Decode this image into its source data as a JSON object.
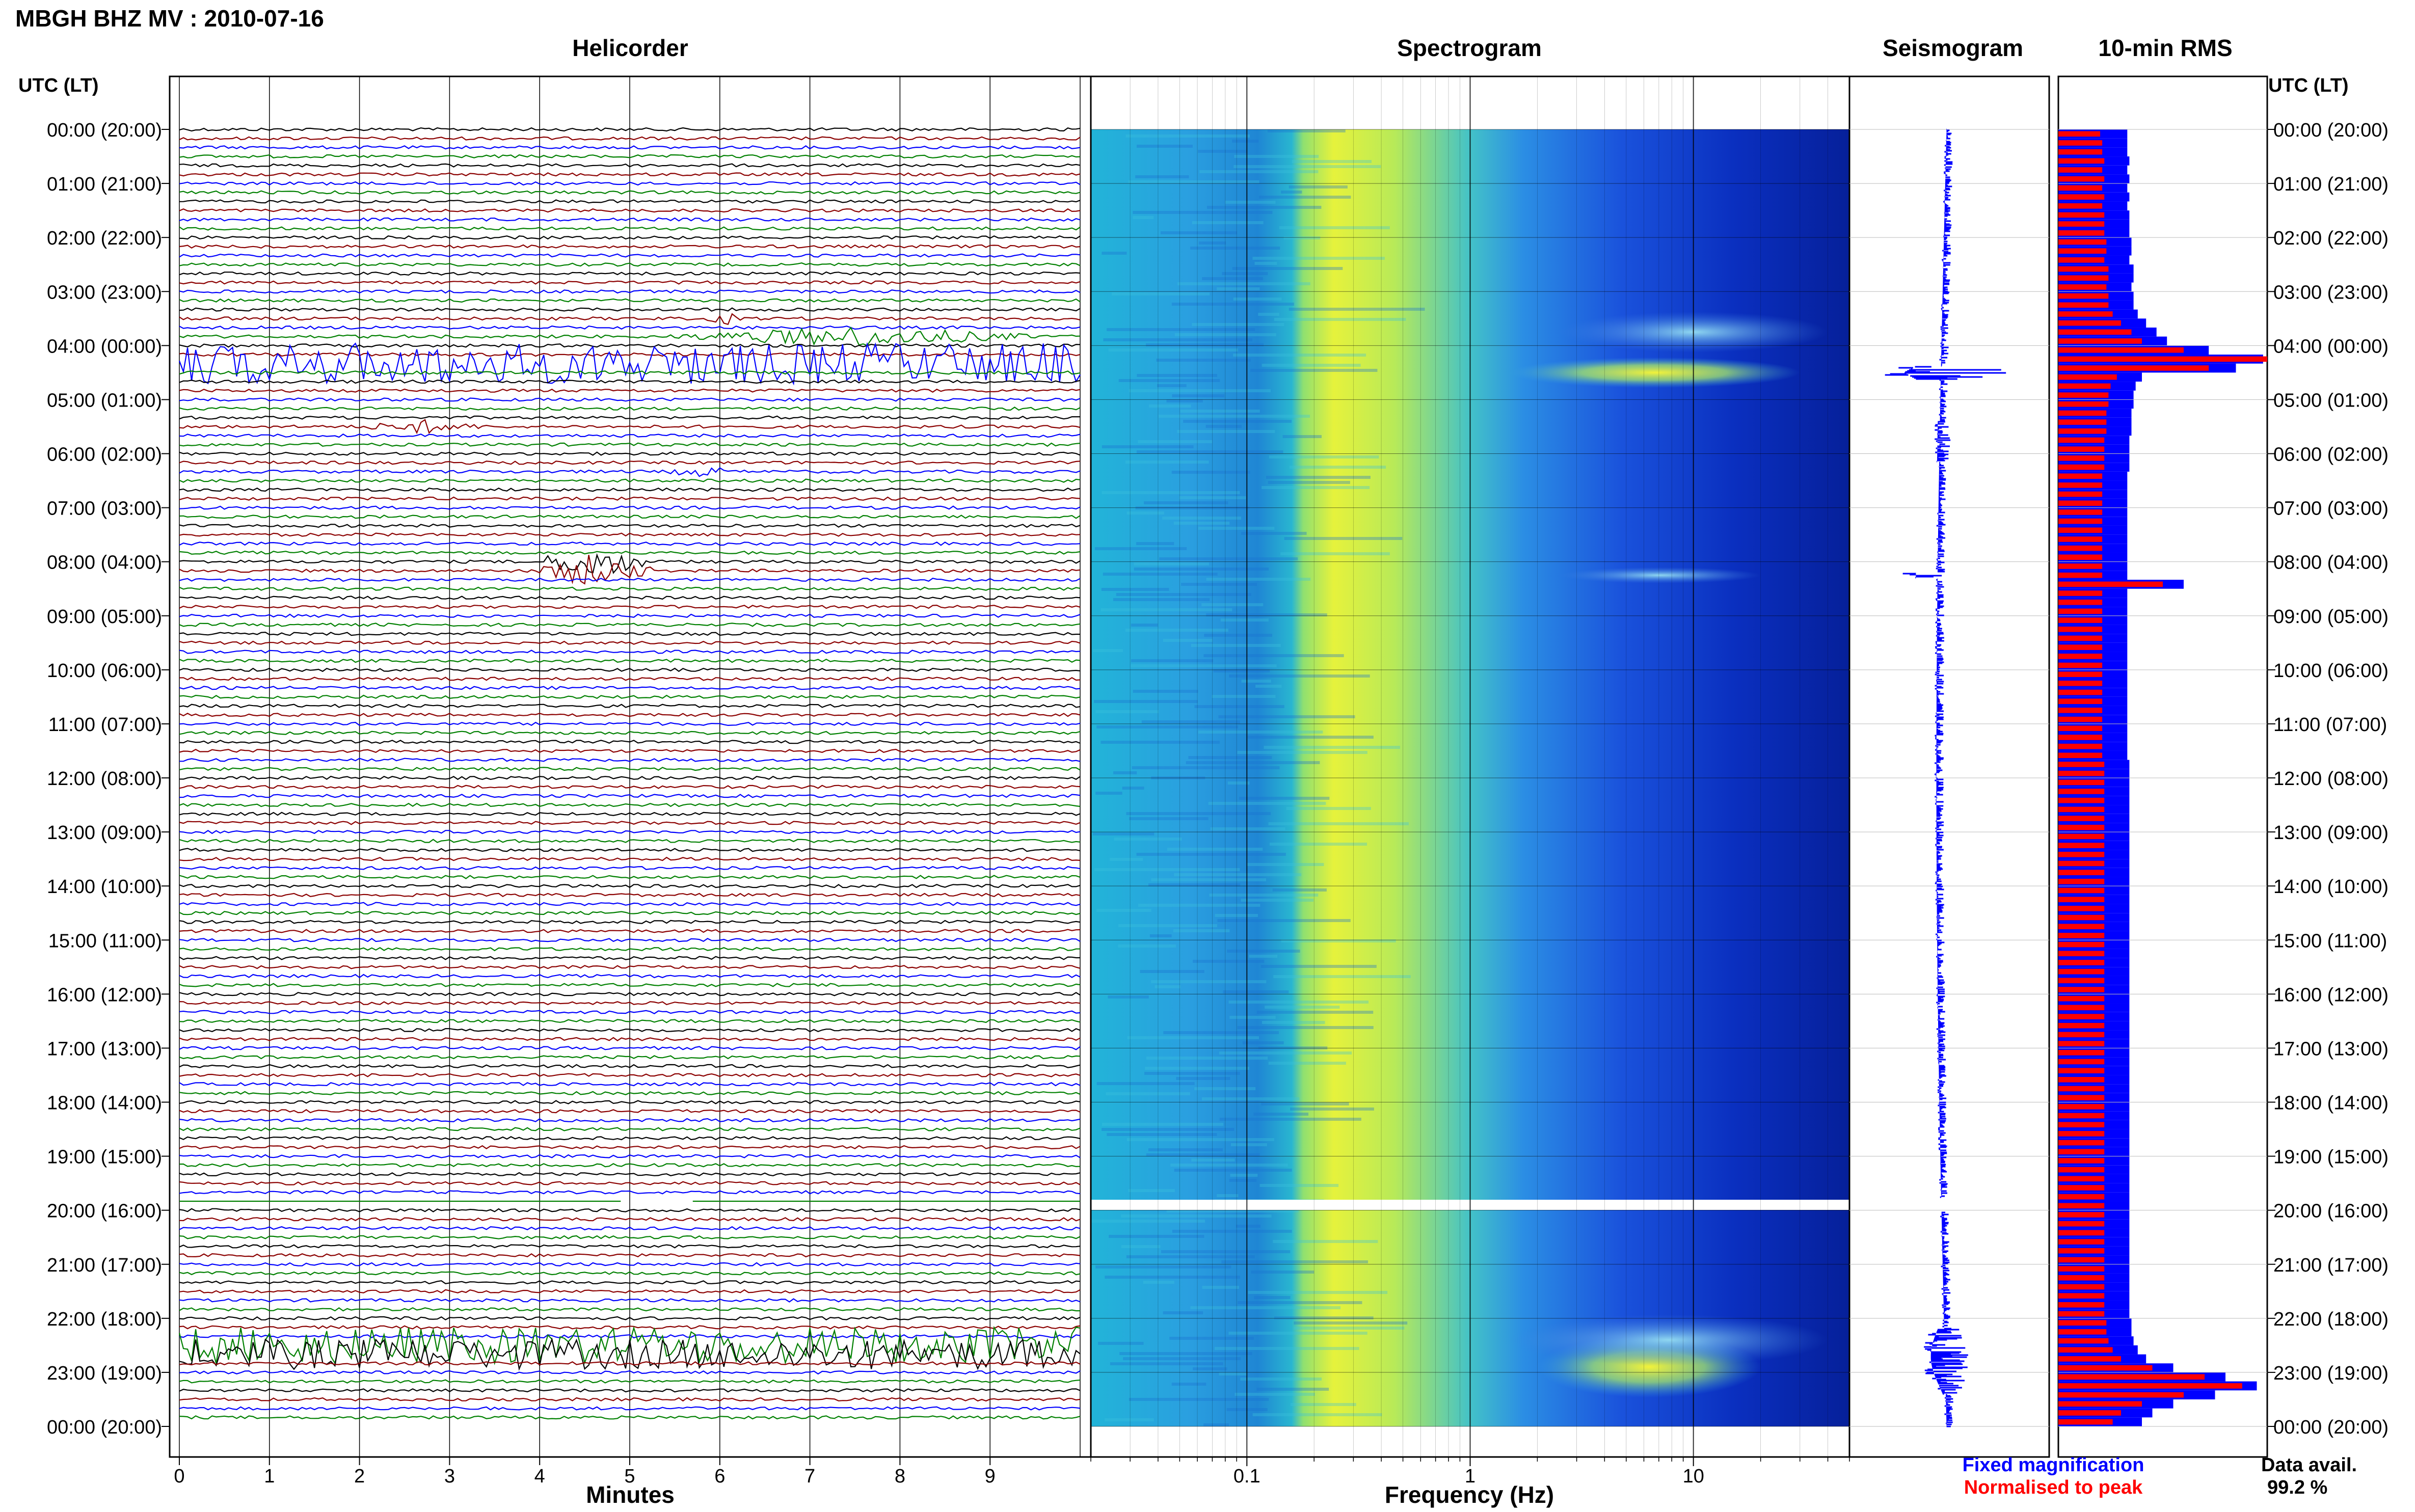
{
  "header": {
    "title": "MBGH BHZ MV : 2010-07-16"
  },
  "panels": {
    "helicorder": "Helicorder",
    "spectrogram": "Spectrogram",
    "seismogram": "Seismogram",
    "rms": "10-min RMS"
  },
  "axes": {
    "time_label_left": "UTC (LT)",
    "time_label_right": "UTC (LT)",
    "minutes_label": "Minutes",
    "frequency_label": "Frequency (Hz)"
  },
  "legend": {
    "fixed": "Fixed magnification",
    "normalised": "Normalised to peak",
    "fixed_color": "#0000ff",
    "normalised_color": "#ff0000"
  },
  "availability": {
    "label": "Data avail.",
    "value": "99.2 %"
  },
  "colors": {
    "trace_cycle": [
      "#000000",
      "#8b0000",
      "#0000ff",
      "#008000"
    ],
    "rms_fixed": "#0000ff",
    "rms_normalised": "#ff0000",
    "seismogram": "#0000ff"
  },
  "chart_data": {
    "type": "heatmap",
    "time_ticks": [
      "00:00 (20:00)",
      "01:00 (21:00)",
      "02:00 (22:00)",
      "03:00 (23:00)",
      "04:00 (00:00)",
      "05:00 (01:00)",
      "06:00 (02:00)",
      "07:00 (03:00)",
      "08:00 (04:00)",
      "09:00 (05:00)",
      "10:00 (06:00)",
      "11:00 (07:00)",
      "12:00 (08:00)",
      "13:00 (09:00)",
      "14:00 (10:00)",
      "15:00 (11:00)",
      "16:00 (12:00)",
      "17:00 (13:00)",
      "18:00 (14:00)",
      "19:00 (15:00)",
      "20:00 (16:00)",
      "21:00 (17:00)",
      "22:00 (18:00)",
      "23:00 (19:00)",
      "00:00 (20:00)"
    ],
    "minutes_ticks": [
      "0",
      "1",
      "2",
      "3",
      "4",
      "5",
      "6",
      "7",
      "8",
      "9"
    ],
    "minutes_range": [
      0,
      10
    ],
    "frequency_ticks": [
      "0.1",
      "1",
      "10"
    ],
    "frequency_range_hz": [
      0.02,
      50
    ],
    "frequency_scale": "log",
    "data_gap_hour": 19.9,
    "events": [
      {
        "hour": 4.35,
        "minute_start": 0,
        "minute_end": 10,
        "amp": 0.95
      },
      {
        "hour": 3.85,
        "minute_start": 5.0,
        "minute_end": 10,
        "amp": 0.5
      },
      {
        "hour": 3.55,
        "minute_start": 5.8,
        "minute_end": 6.3,
        "amp": 0.35
      },
      {
        "hour": 5.55,
        "minute_start": 1.8,
        "minute_end": 3.6,
        "amp": 0.35
      },
      {
        "hour": 6.3,
        "minute_start": 5.3,
        "minute_end": 6.3,
        "amp": 0.3
      },
      {
        "hour": 8.1,
        "minute_start": 3.8,
        "minute_end": 5.4,
        "amp": 0.8
      },
      {
        "hour": 22.45,
        "minute_start": 0,
        "minute_end": 10,
        "amp": 0.85
      },
      {
        "hour": 22.65,
        "minute_start": 0,
        "minute_end": 10,
        "amp": 0.7
      }
    ],
    "rms_fixed": [
      0.33,
      0.33,
      0.33,
      0.34,
      0.33,
      0.34,
      0.33,
      0.34,
      0.33,
      0.34,
      0.34,
      0.34,
      0.35,
      0.35,
      0.34,
      0.36,
      0.36,
      0.35,
      0.36,
      0.36,
      0.38,
      0.42,
      0.47,
      0.52,
      0.72,
      0.98,
      0.85,
      0.4,
      0.37,
      0.36,
      0.36,
      0.35,
      0.35,
      0.35,
      0.34,
      0.34,
      0.34,
      0.34,
      0.33,
      0.33,
      0.33,
      0.33,
      0.33,
      0.33,
      0.33,
      0.33,
      0.33,
      0.33,
      0.33,
      0.33,
      0.6,
      0.33,
      0.33,
      0.33,
      0.33,
      0.33,
      0.33,
      0.33,
      0.33,
      0.33,
      0.33,
      0.33,
      0.33,
      0.33,
      0.33,
      0.33,
      0.33,
      0.33,
      0.33,
      0.33,
      0.34,
      0.34,
      0.34,
      0.34,
      0.34,
      0.34,
      0.34,
      0.34,
      0.34,
      0.34,
      0.34,
      0.34,
      0.34,
      0.34,
      0.34,
      0.34,
      0.34,
      0.34,
      0.34,
      0.34,
      0.34,
      0.34,
      0.34,
      0.34,
      0.34,
      0.34,
      0.34,
      0.34,
      0.34,
      0.34,
      0.34,
      0.34,
      0.34,
      0.34,
      0.34,
      0.34,
      0.34,
      0.34,
      0.34,
      0.34,
      0.34,
      0.34,
      0.34,
      0.34,
      0.34,
      0.34,
      0.34,
      0.34,
      0.34,
      0.34,
      0.34,
      0.34,
      0.34,
      0.34,
      0.34,
      0.34,
      0.34,
      0.34,
      0.34,
      0.34,
      0.34,
      0.34,
      0.35,
      0.35,
      0.36,
      0.38,
      0.42,
      0.55,
      0.8,
      0.95,
      0.75,
      0.55,
      0.45,
      0.4
    ],
    "rms_normalised": [
      0.2,
      0.21,
      0.21,
      0.22,
      0.21,
      0.22,
      0.21,
      0.22,
      0.21,
      0.22,
      0.22,
      0.22,
      0.23,
      0.23,
      0.22,
      0.24,
      0.24,
      0.23,
      0.24,
      0.24,
      0.26,
      0.3,
      0.35,
      0.4,
      0.6,
      1.0,
      0.72,
      0.28,
      0.25,
      0.24,
      0.24,
      0.23,
      0.23,
      0.23,
      0.22,
      0.22,
      0.22,
      0.22,
      0.21,
      0.21,
      0.21,
      0.21,
      0.21,
      0.21,
      0.21,
      0.21,
      0.21,
      0.21,
      0.21,
      0.21,
      0.5,
      0.21,
      0.21,
      0.21,
      0.21,
      0.21,
      0.21,
      0.21,
      0.21,
      0.21,
      0.21,
      0.21,
      0.21,
      0.21,
      0.21,
      0.21,
      0.21,
      0.21,
      0.21,
      0.21,
      0.22,
      0.22,
      0.22,
      0.22,
      0.22,
      0.22,
      0.22,
      0.22,
      0.22,
      0.22,
      0.22,
      0.22,
      0.22,
      0.22,
      0.22,
      0.22,
      0.22,
      0.22,
      0.22,
      0.22,
      0.22,
      0.22,
      0.22,
      0.22,
      0.22,
      0.22,
      0.22,
      0.22,
      0.22,
      0.22,
      0.22,
      0.22,
      0.22,
      0.22,
      0.22,
      0.22,
      0.22,
      0.22,
      0.22,
      0.22,
      0.22,
      0.22,
      0.22,
      0.22,
      0.22,
      0.22,
      0.22,
      0.22,
      0.22,
      0.22,
      0.22,
      0.22,
      0.22,
      0.22,
      0.22,
      0.22,
      0.22,
      0.22,
      0.22,
      0.22,
      0.22,
      0.22,
      0.23,
      0.23,
      0.24,
      0.26,
      0.3,
      0.45,
      0.7,
      0.88,
      0.6,
      0.4,
      0.3,
      0.26
    ]
  }
}
